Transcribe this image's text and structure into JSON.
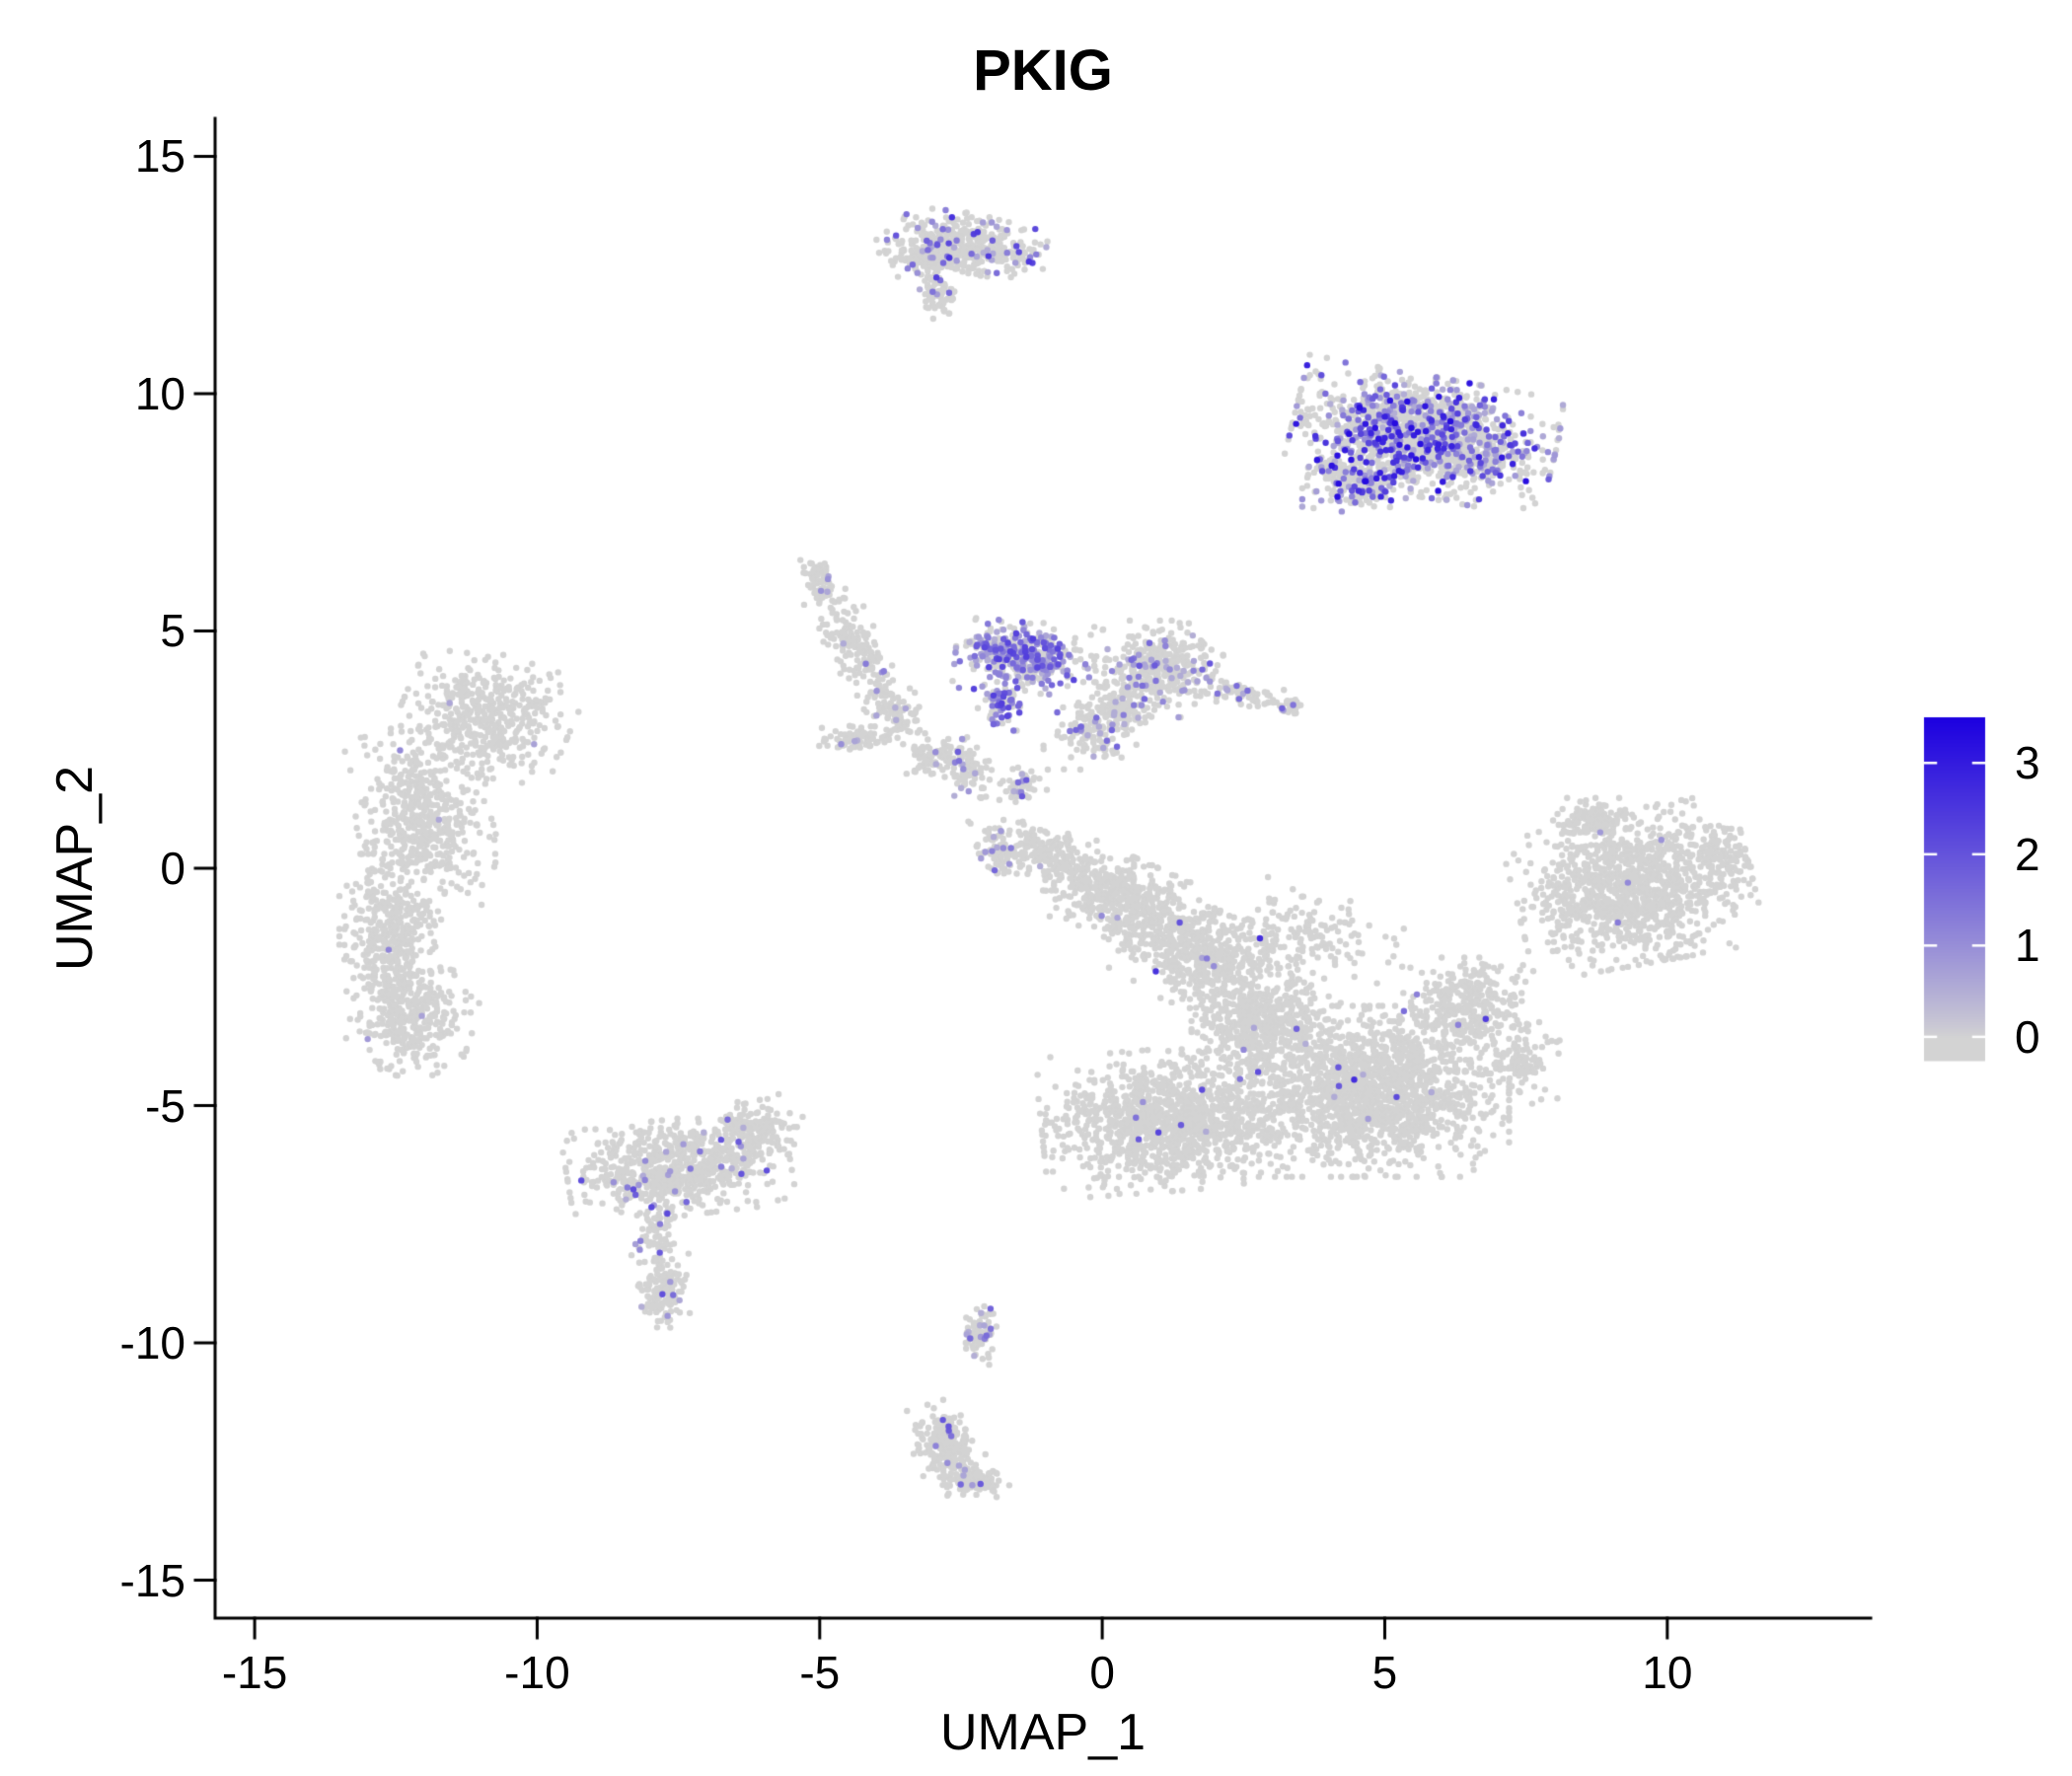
{
  "chart_data": {
    "type": "scatter",
    "title": "PKIG",
    "xlabel": "UMAP_1",
    "ylabel": "UMAP_2",
    "x_ticks": [
      -15,
      -10,
      -5,
      0,
      5,
      10
    ],
    "y_ticks": [
      -15,
      -10,
      -5,
      0,
      5,
      10,
      15
    ],
    "xlim": [
      -15.7,
      13.6
    ],
    "ylim": [
      -15.8,
      15.8
    ],
    "grid": false,
    "legend": {
      "position": "right",
      "ticks": [
        0,
        1,
        2,
        3
      ],
      "vmin": -0.25,
      "vmax": 3.5,
      "color_low": "#d3d3d3",
      "color_high": "#1c00e0"
    },
    "point": {
      "radius": 3.2,
      "color_zero": "#d3d3d3"
    },
    "seed": 42,
    "clusters": [
      {
        "name": "top-small",
        "expr_frac": 0.1,
        "expr_max": 2.6,
        "blobs": [
          {
            "cx": -2.5,
            "cy": 13.1,
            "rx": 1.25,
            "ry": 0.6,
            "rot": -8,
            "n": 420
          },
          {
            "cx": -3.2,
            "cy": 12.9,
            "rx": 0.5,
            "ry": 0.4,
            "rot": 0,
            "n": 90
          },
          {
            "cx": -2.9,
            "cy": 12.1,
            "rx": 0.35,
            "ry": 0.6,
            "rot": 10,
            "n": 70
          }
        ]
      },
      {
        "name": "upper-right",
        "expr_frac": 0.3,
        "expr_max": 3.3,
        "blobs": [
          {
            "cx": 5.7,
            "cy": 9.1,
            "rx": 1.95,
            "ry": 1.05,
            "rot": -12,
            "n": 1500
          },
          {
            "cx": 4.5,
            "cy": 8.1,
            "rx": 0.8,
            "ry": 0.5,
            "rot": 0,
            "n": 220
          }
        ]
      },
      {
        "name": "left-crescent",
        "expr_frac": 0.005,
        "expr_max": 1.8,
        "blobs": [
          {
            "cx": -10.9,
            "cy": 3.2,
            "rx": 1.25,
            "ry": 1.1,
            "rot": -20,
            "n": 450
          },
          {
            "cx": -12.0,
            "cy": 1.0,
            "rx": 1.0,
            "ry": 1.6,
            "rot": 10,
            "n": 520
          },
          {
            "cx": -12.6,
            "cy": -1.5,
            "rx": 0.75,
            "ry": 1.5,
            "rot": 0,
            "n": 420
          },
          {
            "cx": -12.2,
            "cy": -3.2,
            "rx": 0.9,
            "ry": 1.0,
            "rot": -15,
            "n": 320
          }
        ]
      },
      {
        "name": "mid-strands",
        "expr_frac": 0.02,
        "expr_max": 1.5,
        "blobs": [
          {
            "cx": -5.0,
            "cy": 6.0,
            "rx": 0.22,
            "ry": 0.5,
            "rot": 25,
            "n": 70
          },
          {
            "cx": -4.4,
            "cy": 4.7,
            "rx": 0.45,
            "ry": 1.0,
            "rot": 28,
            "n": 140
          },
          {
            "cx": -3.7,
            "cy": 3.4,
            "rx": 0.4,
            "ry": 0.9,
            "rot": 28,
            "n": 110
          },
          {
            "cx": -4.3,
            "cy": 2.75,
            "rx": 0.6,
            "ry": 0.22,
            "rot": 5,
            "n": 90
          },
          {
            "cx": -3.0,
            "cy": 2.3,
            "rx": 0.45,
            "ry": 0.3,
            "rot": 20,
            "n": 70
          }
        ]
      },
      {
        "name": "mid-purple",
        "expr_frac": 0.5,
        "expr_max": 2.4,
        "blobs": [
          {
            "cx": -1.4,
            "cy": 4.45,
            "rx": 1.0,
            "ry": 0.62,
            "rot": -5,
            "n": 430
          },
          {
            "cx": -1.8,
            "cy": 3.5,
            "rx": 0.35,
            "ry": 0.5,
            "rot": 0,
            "n": 70
          }
        ]
      },
      {
        "name": "mid-right",
        "expr_frac": 0.13,
        "expr_max": 2.2,
        "blobs": [
          {
            "cx": 1.0,
            "cy": 4.2,
            "rx": 0.95,
            "ry": 0.85,
            "rot": 0,
            "n": 380
          },
          {
            "cx": 0.3,
            "cy": 3.3,
            "rx": 0.6,
            "ry": 0.45,
            "rot": 0,
            "n": 130
          },
          {
            "cx": 2.4,
            "cy": 3.7,
            "rx": 0.8,
            "ry": 0.22,
            "rot": -12,
            "n": 80
          },
          {
            "cx": 3.3,
            "cy": 3.4,
            "rx": 0.25,
            "ry": 0.18,
            "rot": 0,
            "n": 30
          },
          {
            "cx": -0.2,
            "cy": 2.8,
            "rx": 0.7,
            "ry": 0.6,
            "rot": 0,
            "n": 110
          }
        ]
      },
      {
        "name": "mid-small-bits",
        "expr_frac": 0.12,
        "expr_max": 2.0,
        "blobs": [
          {
            "cx": -2.4,
            "cy": 2.1,
            "rx": 0.35,
            "ry": 0.55,
            "rot": 15,
            "n": 90
          },
          {
            "cx": -1.4,
            "cy": 1.7,
            "rx": 0.35,
            "ry": 0.35,
            "rot": 0,
            "n": 60
          },
          {
            "cx": -1.9,
            "cy": 0.4,
            "rx": 0.3,
            "ry": 0.55,
            "rot": 10,
            "n": 70
          }
        ]
      },
      {
        "name": "central-mass",
        "expr_frac": 0.006,
        "expr_max": 3.0,
        "blobs": [
          {
            "cx": -1.0,
            "cy": 0.3,
            "rx": 0.8,
            "ry": 0.55,
            "rot": -20,
            "n": 180
          },
          {
            "cx": 0.4,
            "cy": -0.7,
            "rx": 1.3,
            "ry": 0.75,
            "rot": -28,
            "n": 520
          },
          {
            "cx": 1.8,
            "cy": -1.9,
            "rx": 1.2,
            "ry": 0.9,
            "rot": -25,
            "n": 520
          },
          {
            "cx": 2.9,
            "cy": -3.3,
            "rx": 1.1,
            "ry": 1.0,
            "rot": 0,
            "n": 520
          },
          {
            "cx": 1.2,
            "cy": -5.3,
            "rx": 1.9,
            "ry": 1.25,
            "rot": 5,
            "n": 1250
          },
          {
            "cx": 4.8,
            "cy": -4.7,
            "rx": 2.0,
            "ry": 1.5,
            "rot": 0,
            "n": 1650
          },
          {
            "cx": 6.4,
            "cy": -2.9,
            "rx": 0.95,
            "ry": 0.85,
            "rot": 0,
            "n": 320
          },
          {
            "cx": 3.6,
            "cy": -1.4,
            "rx": 1.5,
            "ry": 0.9,
            "rot": -10,
            "n": 160
          },
          {
            "cx": 7.4,
            "cy": -4.0,
            "rx": 0.6,
            "ry": 0.8,
            "rot": 0,
            "n": 120
          }
        ]
      },
      {
        "name": "right-cluster",
        "expr_frac": 0.005,
        "expr_max": 2.0,
        "blobs": [
          {
            "cx": 9.4,
            "cy": -0.4,
            "rx": 1.75,
            "ry": 1.35,
            "rot": 12,
            "n": 1150
          },
          {
            "cx": 8.7,
            "cy": 1.0,
            "rx": 0.65,
            "ry": 0.4,
            "rot": 0,
            "n": 130
          },
          {
            "cx": 11.0,
            "cy": 0.2,
            "rx": 0.4,
            "ry": 0.6,
            "rot": 0,
            "n": 90
          }
        ]
      },
      {
        "name": "bottom-left",
        "expr_frac": 0.035,
        "expr_max": 2.2,
        "blobs": [
          {
            "cx": -7.5,
            "cy": -6.3,
            "rx": 1.65,
            "ry": 0.85,
            "rot": 8,
            "n": 720
          },
          {
            "cx": -6.1,
            "cy": -5.5,
            "rx": 0.7,
            "ry": 0.55,
            "rot": 20,
            "n": 160
          },
          {
            "cx": -7.9,
            "cy": -7.7,
            "rx": 0.3,
            "ry": 0.55,
            "rot": 0,
            "n": 70
          },
          {
            "cx": -7.8,
            "cy": -8.9,
            "rx": 0.45,
            "ry": 0.65,
            "rot": 0,
            "n": 130
          }
        ]
      },
      {
        "name": "tiny-mid-bottom",
        "expr_frac": 0.1,
        "expr_max": 1.8,
        "blobs": [
          {
            "cx": -2.15,
            "cy": -9.8,
            "rx": 0.25,
            "ry": 0.55,
            "rot": 0,
            "n": 80
          }
        ]
      },
      {
        "name": "bottom-mid",
        "expr_frac": 0.04,
        "expr_max": 2.2,
        "blobs": [
          {
            "cx": -2.75,
            "cy": -12.2,
            "rx": 0.5,
            "ry": 0.8,
            "rot": 20,
            "n": 240
          },
          {
            "cx": -2.2,
            "cy": -12.9,
            "rx": 0.5,
            "ry": 0.3,
            "rot": -10,
            "n": 90
          }
        ]
      }
    ]
  }
}
